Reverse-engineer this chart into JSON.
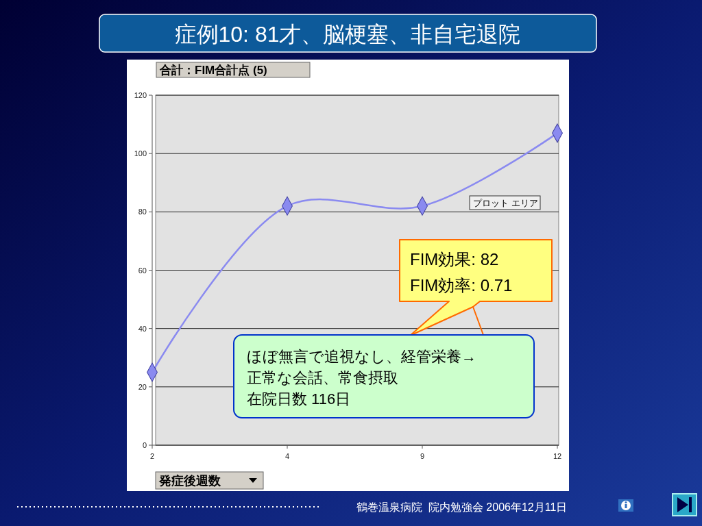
{
  "chart_data": {
    "type": "line",
    "title": "症例10: 81才、脳梗塞、非自宅退院",
    "ylabel": "合計：FIM合計点 (5)",
    "xlabel": "発症後週数",
    "categories": [
      "2",
      "4",
      "9",
      "12"
    ],
    "series": [
      {
        "color": "#8a8af0",
        "values": [
          25,
          82,
          82,
          107
        ]
      }
    ],
    "ylim": [
      0,
      120
    ],
    "yticks": [
      0,
      20,
      40,
      60,
      80,
      100,
      120
    ],
    "grid": "y",
    "marker": "diamond",
    "line_style": "solid",
    "annotations": [
      "プロット エリア",
      "FIM効果: 82",
      "FIM効率: 0.71",
      "ほぼ無言で追視なし、経管栄養→",
      "正常な会話、常食摂取",
      "在院日数 116日",
      "鶴巻温泉病院  院内勉強会 2006年12月11日"
    ]
  }
}
